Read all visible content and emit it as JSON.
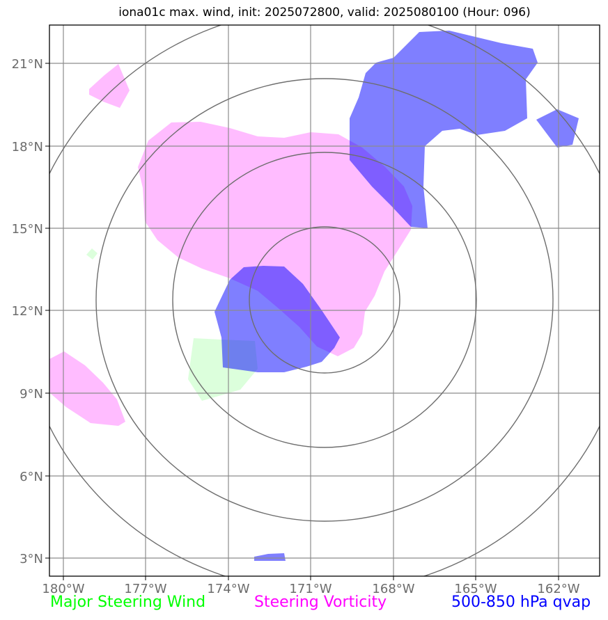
{
  "title": "iona01c max. wind, init: 2025072800, valid: 2025080100 (Hour: 096)",
  "x_ticks": [
    "180°W",
    "177°W",
    "174°W",
    "171°W",
    "168°W",
    "165°W",
    "162°W"
  ],
  "y_ticks": [
    "21°N",
    "18°N",
    "15°N",
    "12°N",
    "9°N",
    "6°N",
    "3°N"
  ],
  "legend": {
    "wind": {
      "label": "Major Steering Wind",
      "color": "#00ff00"
    },
    "vorticity": {
      "label": "Steering Vorticity",
      "color": "#ff00ff"
    },
    "qvap": {
      "label": "500-850 hPa qvap",
      "color": "#0000ff"
    }
  },
  "fill_colors": {
    "wind": "#dcffdc",
    "vorticity": "#ffbcff",
    "qvap": "#0000ff"
  },
  "map_extent": {
    "lon": [
      -180.5,
      -160.5
    ],
    "lat": [
      2.3,
      22.6
    ]
  },
  "range_ring_center": {
    "lon": -171,
    "lat": 12.1
  }
}
